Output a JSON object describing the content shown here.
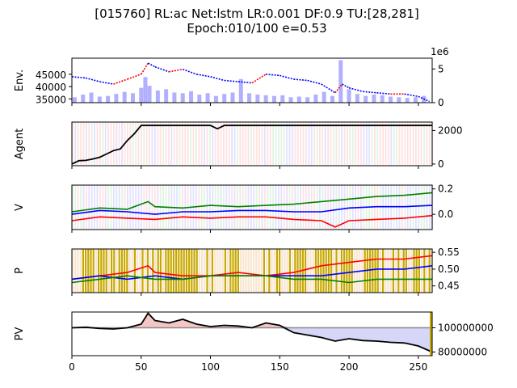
{
  "title_line1": "[015760] RL:ac Net:lstm LR:0.001 DF:0.9 TU:[28,281]",
  "title_line2": "Epoch:010/100 e=0.53",
  "colors": {
    "price_up": "#ff0000",
    "price_down": "#0000ff",
    "volume": "#b0b0ff",
    "agent_line": "#000000",
    "v_red": "#ff0000",
    "v_blue": "#0000ff",
    "v_green": "#008000",
    "p_bg_gold": "#c8a800",
    "pv_above": "#f4c6c6",
    "pv_below": "#d6d6f8",
    "band_red": "#ffd6d6",
    "band_blue": "#d6d6ff",
    "band_green": "#d6f0d6"
  },
  "chart_data": [
    {
      "id": "env",
      "type": "line",
      "ylabel": "Env.",
      "x_range": [
        0,
        260
      ],
      "y_left_ticks": [
        "35000",
        "40000",
        "45000"
      ],
      "y_left_range": [
        33500,
        51500
      ],
      "y_right_ticks": [
        "0",
        "5"
      ],
      "y_right_range": [
        0,
        6.6
      ],
      "right_offset_label": "1e6",
      "series": [
        {
          "label": "price",
          "x": [
            0,
            10,
            20,
            30,
            40,
            50,
            55,
            60,
            70,
            80,
            90,
            100,
            110,
            120,
            130,
            140,
            150,
            160,
            170,
            180,
            190,
            195,
            200,
            210,
            220,
            230,
            240,
            250,
            258
          ],
          "values": [
            44000,
            43500,
            42000,
            41000,
            43000,
            45000,
            49500,
            48000,
            46000,
            47000,
            45000,
            44000,
            42500,
            42000,
            41500,
            45000,
            44500,
            43000,
            42500,
            41000,
            37500,
            41000,
            39500,
            38000,
            37500,
            37000,
            37000,
            36000,
            34000
          ]
        }
      ],
      "volume_x": [
        2,
        8,
        14,
        20,
        26,
        32,
        38,
        44,
        50,
        53,
        56,
        62,
        68,
        74,
        80,
        86,
        92,
        98,
        104,
        110,
        116,
        122,
        128,
        134,
        140,
        146,
        152,
        158,
        164,
        170,
        176,
        182,
        188,
        194,
        200,
        206,
        212,
        218,
        224,
        230,
        236,
        242,
        248,
        254
      ],
      "volume_values": [
        0.8,
        1.2,
        1.5,
        0.9,
        1.0,
        1.3,
        1.6,
        1.4,
        2.2,
        3.8,
        2.5,
        1.8,
        2.0,
        1.5,
        1.4,
        1.7,
        1.2,
        1.4,
        1.0,
        1.3,
        1.5,
        3.5,
        1.4,
        1.2,
        1.1,
        1.0,
        1.1,
        0.8,
        0.9,
        0.8,
        1.2,
        1.6,
        1.0,
        6.3,
        2.0,
        1.3,
        1.0,
        1.2,
        1.1,
        0.9,
        0.8,
        0.7,
        0.8,
        1.0
      ]
    },
    {
      "id": "agent",
      "type": "line",
      "ylabel": "Agent",
      "x_range": [
        0,
        260
      ],
      "y_range": [
        -100,
        2500
      ],
      "y_right_ticks": [
        "0",
        "2000"
      ],
      "series": [
        {
          "label": "agent",
          "x": [
            0,
            5,
            10,
            15,
            20,
            25,
            30,
            35,
            40,
            45,
            50,
            55,
            60,
            65,
            70,
            75,
            80,
            85,
            90,
            95,
            100,
            105,
            110,
            115,
            120,
            125,
            130,
            135,
            140,
            150,
            160,
            170,
            180,
            190,
            200,
            210,
            220,
            230,
            240,
            250,
            260
          ],
          "values": [
            0,
            200,
            220,
            300,
            400,
            600,
            800,
            900,
            1400,
            1800,
            2300,
            2300,
            2300,
            2300,
            2300,
            2300,
            2300,
            2300,
            2300,
            2300,
            2300,
            2100,
            2300,
            2300,
            2300,
            2300,
            2300,
            2300,
            2300,
            2300,
            2300,
            2300,
            2300,
            2300,
            2300,
            2300,
            2300,
            2300,
            2300,
            2300,
            2300
          ]
        }
      ]
    },
    {
      "id": "value",
      "type": "line",
      "ylabel": "V",
      "x_range": [
        0,
        260
      ],
      "y_range": [
        -0.12,
        0.23
      ],
      "y_right_ticks": [
        "0.0",
        "0.2"
      ],
      "series": [
        {
          "label": "red",
          "x": [
            0,
            20,
            40,
            60,
            80,
            100,
            120,
            140,
            160,
            180,
            190,
            200,
            220,
            240,
            260
          ],
          "values": [
            -0.05,
            -0.02,
            -0.03,
            -0.04,
            -0.02,
            -0.03,
            -0.02,
            -0.02,
            -0.04,
            -0.05,
            -0.1,
            -0.05,
            -0.04,
            -0.03,
            -0.01
          ]
        },
        {
          "label": "blue",
          "x": [
            0,
            20,
            40,
            60,
            80,
            100,
            120,
            140,
            160,
            180,
            200,
            220,
            240,
            260
          ],
          "values": [
            0.0,
            0.03,
            0.02,
            0.0,
            0.02,
            0.02,
            0.03,
            0.03,
            0.02,
            0.02,
            0.05,
            0.06,
            0.06,
            0.07
          ]
        },
        {
          "label": "green",
          "x": [
            0,
            20,
            40,
            55,
            60,
            80,
            100,
            120,
            140,
            160,
            180,
            200,
            220,
            240,
            260
          ],
          "values": [
            0.02,
            0.05,
            0.04,
            0.1,
            0.06,
            0.05,
            0.07,
            0.06,
            0.07,
            0.08,
            0.1,
            0.12,
            0.14,
            0.15,
            0.17
          ]
        }
      ]
    },
    {
      "id": "policy",
      "type": "line",
      "ylabel": "P",
      "x_range": [
        0,
        260
      ],
      "y_range": [
        0.43,
        0.56
      ],
      "y_right_ticks": [
        "0.45",
        "0.50",
        "0.55"
      ],
      "series": [
        {
          "label": "red",
          "x": [
            0,
            20,
            40,
            55,
            60,
            80,
            100,
            120,
            140,
            160,
            180,
            200,
            220,
            240,
            260
          ],
          "values": [
            0.47,
            0.48,
            0.49,
            0.51,
            0.49,
            0.48,
            0.48,
            0.49,
            0.48,
            0.49,
            0.51,
            0.52,
            0.53,
            0.53,
            0.54
          ]
        },
        {
          "label": "blue",
          "x": [
            0,
            20,
            40,
            60,
            80,
            100,
            120,
            140,
            160,
            180,
            200,
            220,
            240,
            260
          ],
          "values": [
            0.47,
            0.48,
            0.47,
            0.48,
            0.47,
            0.48,
            0.48,
            0.48,
            0.48,
            0.48,
            0.49,
            0.5,
            0.5,
            0.51
          ]
        },
        {
          "label": "green",
          "x": [
            0,
            20,
            40,
            60,
            80,
            100,
            120,
            140,
            160,
            180,
            200,
            220,
            240,
            260
          ],
          "values": [
            0.46,
            0.47,
            0.48,
            0.47,
            0.47,
            0.48,
            0.48,
            0.48,
            0.47,
            0.47,
            0.46,
            0.47,
            0.47,
            0.47
          ]
        }
      ]
    },
    {
      "id": "pv",
      "type": "area",
      "ylabel": "PV",
      "xlabel": "",
      "x_range": [
        0,
        260
      ],
      "x_ticks": [
        "0",
        "50",
        "100",
        "150",
        "200",
        "250"
      ],
      "y_range": [
        77000000,
        113000000
      ],
      "baseline": 100000000,
      "y_right_ticks": [
        "80000000",
        "100000000"
      ],
      "series": [
        {
          "label": "pv",
          "x": [
            0,
            10,
            20,
            30,
            40,
            50,
            55,
            60,
            70,
            80,
            90,
            100,
            110,
            120,
            130,
            140,
            150,
            160,
            170,
            180,
            190,
            200,
            210,
            220,
            230,
            240,
            250,
            260
          ],
          "values": [
            100000000,
            100500000,
            99500000,
            99000000,
            100000000,
            103000000,
            112000000,
            106000000,
            104000000,
            107000000,
            103000000,
            101000000,
            102000000,
            101500000,
            100000000,
            104000000,
            102000000,
            96000000,
            94000000,
            92000000,
            89000000,
            91000000,
            89500000,
            89000000,
            88000000,
            87500000,
            85000000,
            80000000
          ]
        }
      ]
    }
  ]
}
